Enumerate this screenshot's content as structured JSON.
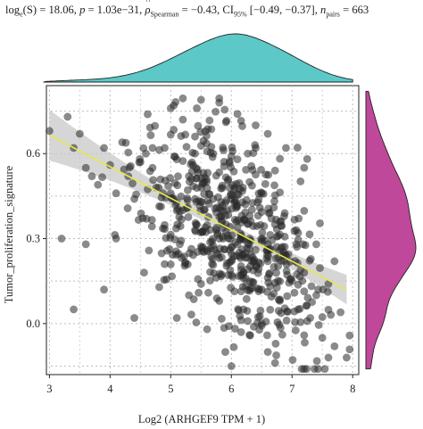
{
  "stats": {
    "loge_label": "log",
    "loge_sub": "e",
    "S_text": "(S) = 18.06,",
    "p_label": "p",
    "p_text": "= 1.03e−31,",
    "rho_symbol": "ρ",
    "rho_sub": "Spearman",
    "rho_text": "= −0.43, CI",
    "ci_sub": "95%",
    "ci_text": "[−0.49, −0.37],",
    "n_label": "n",
    "n_sub": "pairs",
    "n_text": "= 663"
  },
  "colors": {
    "points": "#2a2a2a",
    "fit_line": "#e8e84a",
    "ci_band": "#c8c8c8",
    "top_density": "#5cc8c8",
    "right_density": "#c0489a",
    "grid": "#bdbdbd"
  },
  "chart_data": {
    "type": "scatter",
    "xlabel": "Log2 (ARHGEF9 TPM + 1)",
    "ylabel": "Tumor_proliferation_signature",
    "x_ticks": [
      "3",
      "4",
      "5",
      "6",
      "7",
      "8"
    ],
    "y_ticks": [
      "0.0",
      "0.3",
      "0.6"
    ],
    "xlim": [
      2.95,
      8.1
    ],
    "ylim": [
      -0.18,
      0.84
    ],
    "grid": true,
    "n_points": 663,
    "fit": {
      "x": [
        3.0,
        7.9
      ],
      "y": [
        0.665,
        0.12
      ]
    },
    "marginals": {
      "top": "density of x",
      "right": "density of y"
    },
    "sample_points": [
      [
        3.3,
        0.73
      ],
      [
        3.4,
        0.62
      ],
      [
        3.5,
        0.67
      ],
      [
        3.6,
        0.55
      ],
      [
        3.7,
        0.52
      ],
      [
        3.8,
        0.49
      ],
      [
        3.9,
        0.62
      ],
      [
        4.0,
        0.56
      ],
      [
        4.1,
        0.46
      ],
      [
        4.2,
        0.64
      ],
      [
        4.3,
        0.52
      ],
      [
        4.4,
        0.44
      ],
      [
        4.5,
        0.57
      ],
      [
        4.6,
        0.37
      ],
      [
        4.7,
        0.55
      ],
      [
        4.8,
        0.48
      ],
      [
        4.9,
        0.62
      ],
      [
        5.0,
        0.46
      ],
      [
        5.1,
        0.58
      ],
      [
        5.2,
        0.4
      ],
      [
        5.3,
        0.52
      ],
      [
        5.4,
        0.33
      ],
      [
        5.5,
        0.48
      ],
      [
        5.6,
        0.26
      ],
      [
        5.7,
        0.44
      ],
      [
        5.8,
        0.3
      ],
      [
        5.9,
        0.38
      ],
      [
        6.0,
        0.22
      ],
      [
        6.1,
        0.34
      ],
      [
        6.2,
        0.18
      ],
      [
        6.3,
        0.3
      ],
      [
        6.4,
        0.26
      ],
      [
        6.5,
        0.12
      ],
      [
        6.6,
        0.28
      ],
      [
        6.7,
        0.2
      ],
      [
        6.8,
        0.08
      ],
      [
        6.9,
        0.24
      ],
      [
        7.0,
        0.15
      ],
      [
        7.1,
        0.05
      ],
      [
        7.2,
        0.18
      ],
      [
        7.3,
        0.02
      ],
      [
        7.4,
        0.1
      ],
      [
        7.5,
        -0.05
      ],
      [
        7.6,
        0.14
      ],
      [
        7.7,
        -0.08
      ],
      [
        7.8,
        0.04
      ],
      [
        7.9,
        -0.12
      ],
      [
        3.0,
        0.68
      ],
      [
        3.2,
        0.3
      ],
      [
        3.4,
        0.05
      ],
      [
        3.6,
        0.28
      ],
      [
        3.9,
        0.12
      ],
      [
        4.1,
        0.3
      ],
      [
        4.4,
        0.02
      ],
      [
        4.7,
        0.62
      ],
      [
        5.0,
        0.76
      ],
      [
        5.2,
        0.72
      ],
      [
        5.5,
        0.79
      ],
      [
        5.8,
        0.78
      ],
      [
        6.1,
        0.74
      ],
      [
        6.4,
        0.7
      ],
      [
        6.6,
        0.67
      ],
      [
        6.9,
        0.62
      ],
      [
        7.2,
        0.55
      ],
      [
        5.3,
        0.1
      ],
      [
        5.6,
        -0.02
      ],
      [
        5.9,
        -0.1
      ],
      [
        6.0,
        -0.15
      ],
      [
        6.3,
        -0.04
      ],
      [
        6.6,
        -0.1
      ],
      [
        5.1,
        0.02
      ],
      [
        4.9,
        0.21
      ],
      [
        5.5,
        0.14
      ],
      [
        5.8,
        0.08
      ],
      [
        6.2,
        0.05
      ],
      [
        6.5,
        0.0
      ],
      [
        6.8,
        0.36
      ],
      [
        7.1,
        0.32
      ],
      [
        7.4,
        0.28
      ],
      [
        7.7,
        0.22
      ],
      [
        6.0,
        0.44
      ],
      [
        6.3,
        0.5
      ],
      [
        6.5,
        0.46
      ],
      [
        6.7,
        0.41
      ],
      [
        5.7,
        0.6
      ],
      [
        5.4,
        0.66
      ],
      [
        6.1,
        0.58
      ],
      [
        6.4,
        0.62
      ]
    ]
  }
}
